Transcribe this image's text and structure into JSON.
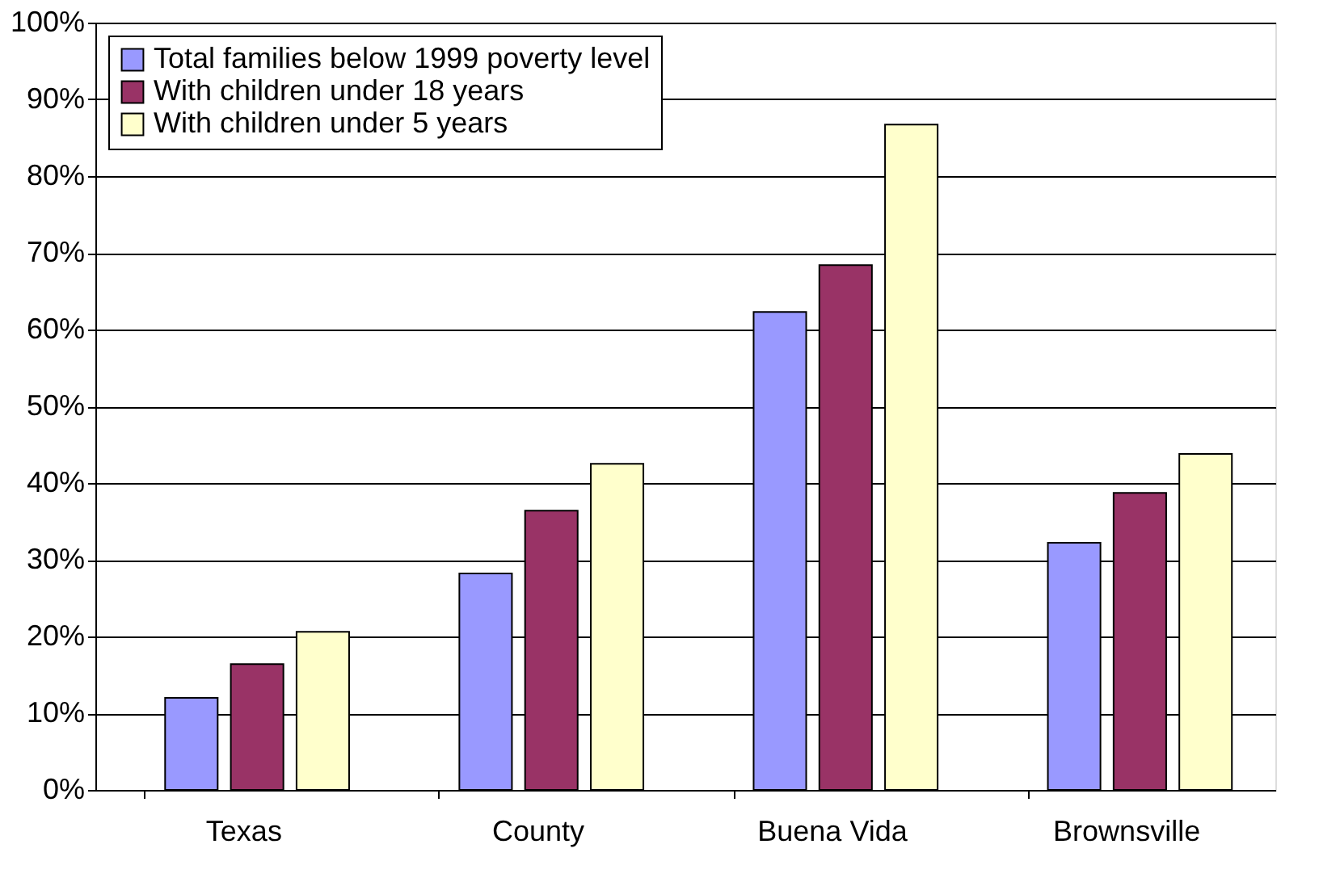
{
  "chart_data": {
    "type": "bar",
    "categories": [
      "Texas",
      "County",
      "Buena Vida",
      "Brownsville"
    ],
    "series": [
      {
        "name": "Total families below 1999 poverty level",
        "color": "#9999ff",
        "values": [
          12,
          28.2,
          62.3,
          32.2
        ]
      },
      {
        "name": "With children under 18 years",
        "color": "#993366",
        "values": [
          16.4,
          36.4,
          68.4,
          38.7
        ]
      },
      {
        "name": "With children under 5 years",
        "color": "#ffffcc",
        "values": [
          20.6,
          42.5,
          86.7,
          43.8
        ]
      }
    ],
    "ylim": [
      0,
      100
    ],
    "yticks": [
      {
        "value": 0,
        "label": "0%"
      },
      {
        "value": 10,
        "label": "10%"
      },
      {
        "value": 20,
        "label": "20%"
      },
      {
        "value": 30,
        "label": "30%"
      },
      {
        "value": 40,
        "label": "40%"
      },
      {
        "value": 50,
        "label": "50%"
      },
      {
        "value": 60,
        "label": "60%"
      },
      {
        "value": 70,
        "label": "70%"
      },
      {
        "value": 80,
        "label": "80%"
      },
      {
        "value": 90,
        "label": "90%"
      },
      {
        "value": 100,
        "label": "100%"
      }
    ],
    "grid": "y",
    "legend": "top left"
  }
}
